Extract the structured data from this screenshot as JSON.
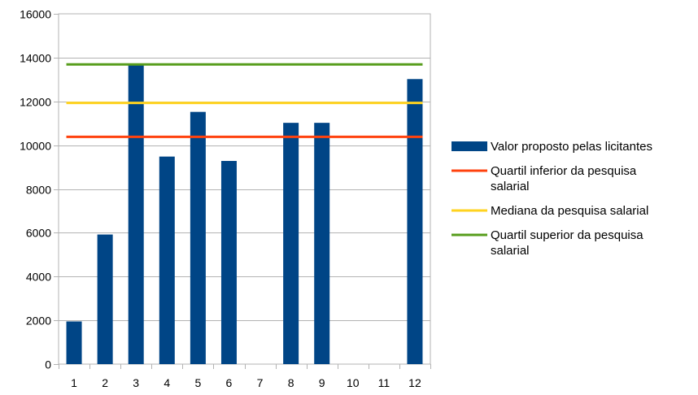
{
  "chart_data": {
    "type": "bar",
    "title": "",
    "xlabel": "",
    "ylabel": "",
    "categories": [
      "1",
      "2",
      "3",
      "4",
      "5",
      "6",
      "7",
      "8",
      "9",
      "10",
      "11",
      "12"
    ],
    "series": [
      {
        "name": "Valor proposto pelas licitantes",
        "kind": "bar",
        "color": "#004586",
        "values": [
          1950,
          5920,
          13650,
          9480,
          11520,
          9280,
          null,
          11020,
          11020,
          null,
          null,
          13020
        ]
      }
    ],
    "reference_lines": [
      {
        "name": "Quartil inferior da pesquisa salarial",
        "value": 10380,
        "color": "#ff420e"
      },
      {
        "name": "Mediana da pesquisa salarial",
        "value": 11930,
        "color": "#ffd320"
      },
      {
        "name": "Quartil superior da pesquisa salarial",
        "value": 13690,
        "color": "#579d1c"
      }
    ],
    "ylim": [
      0,
      16000
    ],
    "yticks": [
      0,
      2000,
      4000,
      6000,
      8000,
      10000,
      12000,
      14000,
      16000
    ],
    "grid": true,
    "legend_position": "right"
  },
  "legend": {
    "items": [
      {
        "lines": [
          "Valor proposto pelas licitantes"
        ],
        "color": "#004586",
        "kind": "box"
      },
      {
        "lines": [
          "Quartil inferior da pesquisa",
          "salarial"
        ],
        "color": "#ff420e",
        "kind": "line"
      },
      {
        "lines": [
          "Mediana da pesquisa salarial"
        ],
        "color": "#ffd320",
        "kind": "line"
      },
      {
        "lines": [
          "Quartil superior da pesquisa",
          "salarial"
        ],
        "color": "#579d1c",
        "kind": "line"
      }
    ]
  }
}
